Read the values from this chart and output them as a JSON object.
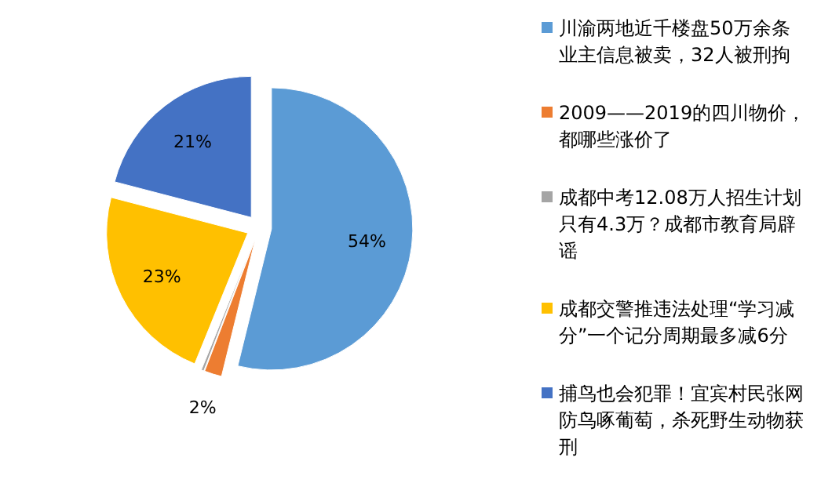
{
  "chart_data": {
    "type": "pie",
    "categories": [
      "川渝两地近千楼盘50万余条业主信息被卖，32人被刑拘",
      "2009——2019的四川物价，都哪些涨价了",
      "成都中考12.08万人招生计划只有4.3万？成都市教育局辟谣",
      "成都交警推违法处理“学习减分”一个记分周期最多减6分",
      "捕鸟也会犯罪！宜宾村民张网防鸟啄葡萄，杀死野生动物获刑"
    ],
    "values": [
      54,
      2,
      0.3,
      23,
      21
    ],
    "value_labels": [
      "54%",
      "2%",
      null,
      "23%",
      "21%"
    ],
    "colors": [
      "#5b9bd5",
      "#ed7d31",
      "#a5a5a5",
      "#ffc000",
      "#4472c4"
    ],
    "legend": "right"
  }
}
